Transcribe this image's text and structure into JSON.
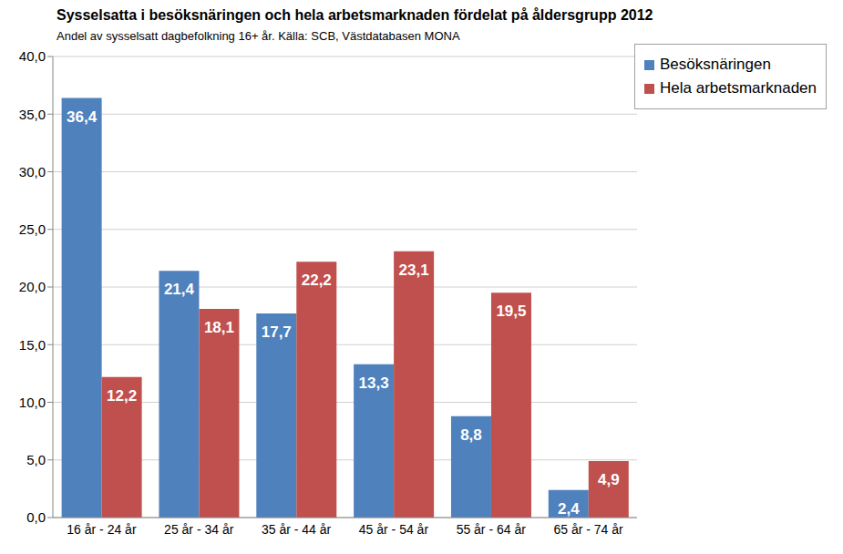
{
  "chart_data": {
    "type": "bar",
    "title": "Sysselsatta i besöksnäringen och hela arbetsmarknaden fördelat på åldersgrupp 2012",
    "subtitle": "Andel av sysselsatt dagbefolkning 16+ år. Källa: SCB, Västdatabasen MONA",
    "categories": [
      "16 år - 24 år",
      "25 år - 34 år",
      "35 år - 44 år",
      "45 år - 54 år",
      "55 år - 64 år",
      "65 år - 74 år"
    ],
    "series": [
      {
        "name": "Besöksnäringen",
        "color": "#4f81bd",
        "values": [
          36.4,
          21.4,
          17.7,
          13.3,
          8.8,
          2.4
        ],
        "value_labels": [
          "36,4",
          "21,4",
          "17,7",
          "13,3",
          "8,8",
          "2,4"
        ]
      },
      {
        "name": "Hela arbetsmarknaden",
        "color": "#c0504d",
        "values": [
          12.2,
          18.1,
          22.2,
          23.1,
          19.5,
          4.9
        ],
        "value_labels": [
          "12,2",
          "18,1",
          "22,2",
          "23,1",
          "19,5",
          "4,9"
        ]
      }
    ],
    "ylim": [
      0,
      40
    ],
    "yticks": [
      {
        "value": 0,
        "label": "0,0"
      },
      {
        "value": 5,
        "label": "5,0"
      },
      {
        "value": 10,
        "label": "10,0"
      },
      {
        "value": 15,
        "label": "15,0"
      },
      {
        "value": 20,
        "label": "20,0"
      },
      {
        "value": 25,
        "label": "25,0"
      },
      {
        "value": 30,
        "label": "30,0"
      },
      {
        "value": 35,
        "label": "35,0"
      },
      {
        "value": 40,
        "label": "40,0"
      }
    ],
    "grid": true,
    "legend": "upper right",
    "data_labels": true
  }
}
